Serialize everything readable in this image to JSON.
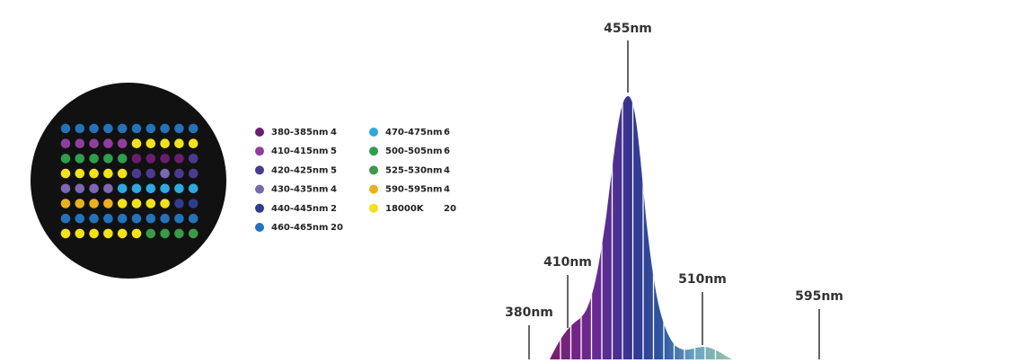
{
  "legend": [
    {
      "label": "380-385nm",
      "count": 4,
      "color": "#6a1f6e"
    },
    {
      "label": "410-415nm",
      "count": 5,
      "color": "#8e3f9c"
    },
    {
      "label": "420-425nm",
      "count": 5,
      "color": "#4a3b91"
    },
    {
      "label": "430-435nm",
      "count": 4,
      "color": "#7c68b0"
    },
    {
      "label": "440-445nm",
      "count": 2,
      "color": "#2e3d8f"
    },
    {
      "label": "460-465nm",
      "count": 20,
      "color": "#2472b9"
    },
    {
      "label": "470-475nm",
      "count": 6,
      "color": "#2ea9e0"
    },
    {
      "label": "500-505nm",
      "count": 6,
      "color": "#2e9e4f"
    },
    {
      "label": "525-530nm",
      "count": 4,
      "color": "#3a9a48"
    },
    {
      "label": "590-595nm",
      "count": 4,
      "color": "#eab020"
    },
    {
      "label": "18000K",
      "count": 20,
      "color": "#f2e21a"
    }
  ],
  "peaks": [
    {
      "label": "455nm"
    },
    {
      "label": "410nm"
    },
    {
      "label": "380nm"
    },
    {
      "label": "510nm"
    },
    {
      "label": "595nm"
    }
  ]
}
